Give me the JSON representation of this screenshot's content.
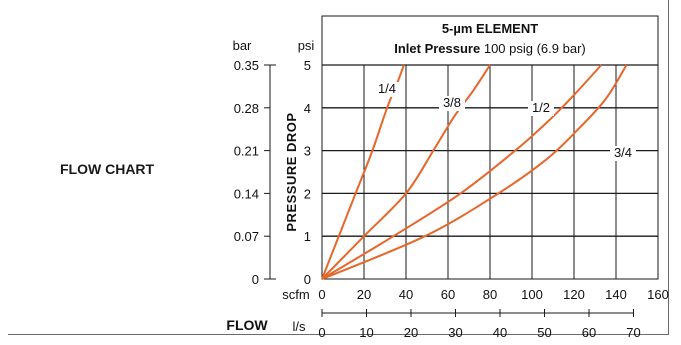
{
  "section_label": "FLOW CHART",
  "chart_data": {
    "type": "line",
    "title": "5-µm ELEMENT",
    "subtitle_bold": "Inlet Pressure",
    "subtitle_rest": "100 psig (6.9 bar)",
    "ylabel": "PRESSURE DROP",
    "y_unit_left": "bar",
    "y_unit_right": "psi",
    "y_ticks_psi": [
      "0",
      "1",
      "2",
      "3",
      "4",
      "5"
    ],
    "y_ticks_bar": [
      "0",
      "0.07",
      "0.14",
      "0.21",
      "0.28",
      "0.35"
    ],
    "ylim": [
      0,
      5
    ],
    "xlabel": "FLOW",
    "x_unit_scfm": "scfm",
    "x_unit_ls": "l/s",
    "x_ticks_scfm": [
      "0",
      "20",
      "40",
      "60",
      "80",
      "100",
      "120",
      "140",
      "160"
    ],
    "x_ticks_ls": [
      "0",
      "10",
      "20",
      "30",
      "40",
      "50",
      "60",
      "70"
    ],
    "xlim": [
      0,
      160
    ],
    "grid": true,
    "line_color": "#e8662a",
    "series": [
      {
        "name": "1/4",
        "x": [
          0,
          8,
          16,
          24,
          31,
          36,
          39
        ],
        "y": [
          0,
          1,
          2,
          3,
          4,
          4.6,
          5
        ]
      },
      {
        "name": "3/8",
        "x": [
          0,
          20,
          40,
          53,
          63,
          72,
          80
        ],
        "y": [
          0,
          1,
          2,
          3,
          3.8,
          4.4,
          5
        ]
      },
      {
        "name": "1/2",
        "x": [
          0,
          34,
          66,
          92,
          108,
          120,
          133
        ],
        "y": [
          0,
          1,
          2,
          3,
          3.7,
          4.3,
          5
        ]
      },
      {
        "name": "3/4",
        "x": [
          0,
          49,
          84,
          107,
          122,
          135,
          145
        ],
        "y": [
          0,
          1,
          2,
          2.8,
          3.5,
          4.2,
          5
        ]
      }
    ]
  }
}
